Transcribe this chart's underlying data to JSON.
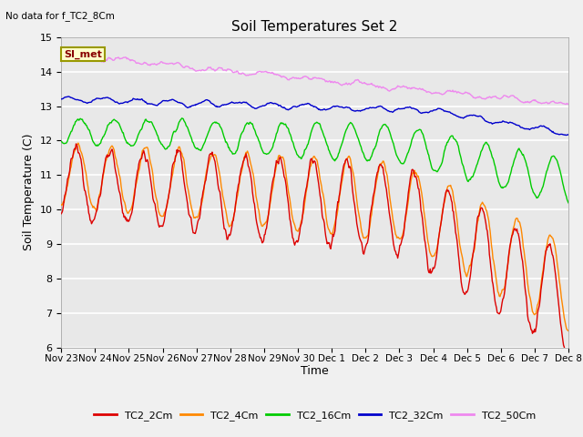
{
  "title": "Soil Temperatures Set 2",
  "ylabel": "Soil Temperature (C)",
  "xlabel": "Time",
  "note": "No data for f_TC2_8Cm",
  "legend_label": "SI_met",
  "ylim": [
    6.0,
    15.0
  ],
  "yticks": [
    6.0,
    7.0,
    8.0,
    9.0,
    10.0,
    11.0,
    12.0,
    13.0,
    14.0,
    15.0
  ],
  "xtick_labels": [
    "Nov 23",
    "Nov 24",
    "Nov 25",
    "Nov 26",
    "Nov 27",
    "Nov 28",
    "Nov 29",
    "Nov 30",
    "Dec 1",
    "Dec 2",
    "Dec 3",
    "Dec 4",
    "Dec 5",
    "Dec 6",
    "Dec 7",
    "Dec 8"
  ],
  "series_colors": [
    "#dd0000",
    "#ff8800",
    "#00cc00",
    "#0000cc",
    "#ee88ee"
  ],
  "series_names": [
    "TC2_2Cm",
    "TC2_4Cm",
    "TC2_16Cm",
    "TC2_32Cm",
    "TC2_50Cm"
  ],
  "fig_bg_color": "#f0f0f0",
  "plot_bg_color": "#e8e8e8",
  "grid_color": "#ffffff",
  "n_points": 720,
  "lw": 1.0
}
